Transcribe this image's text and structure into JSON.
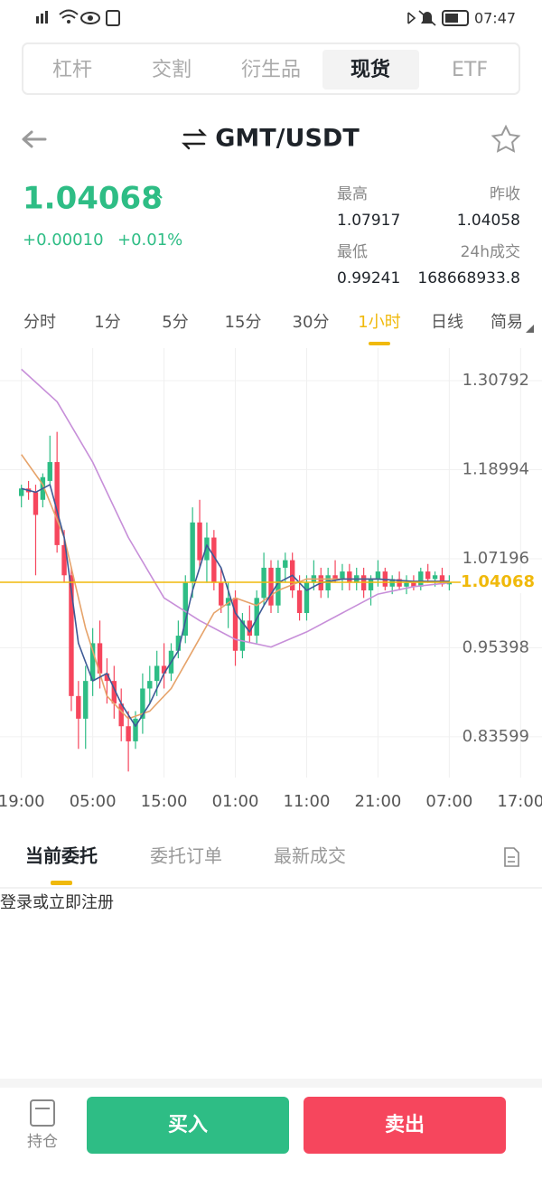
{
  "status_bar": {
    "time": "07:47"
  },
  "market_tabs": {
    "items": [
      "杠杆",
      "交割",
      "衍生品",
      "现货",
      "ETF"
    ],
    "active": "现货"
  },
  "pair": "GMT/USDT",
  "ticker": {
    "price": "1.04068",
    "change": "+0.00010",
    "change_percent": "+0.01%",
    "stats": [
      {
        "label": "最高",
        "value": "1.07917"
      },
      {
        "label": "昨收",
        "value": "1.04058"
      },
      {
        "label": "最低",
        "value": "0.99241"
      },
      {
        "label": "24h成交",
        "value": "168668933.8"
      }
    ]
  },
  "intervals": {
    "items": [
      "分时",
      "1分",
      "5分",
      "15分",
      "30分",
      "1小时",
      "日线",
      "简易"
    ],
    "active": "1小时"
  },
  "chart_data": {
    "type": "candlestick",
    "up_color": "#2ebd85",
    "down_color": "#f6465d",
    "grid": true,
    "xlim": [
      -3,
      73
    ],
    "xticks": [
      {
        "value": 0,
        "label": "19:00"
      },
      {
        "value": 10,
        "label": "05:00"
      },
      {
        "value": 20,
        "label": "15:00"
      },
      {
        "value": 30,
        "label": "01:00"
      },
      {
        "value": 40,
        "label": "11:00"
      },
      {
        "value": 50,
        "label": "21:00"
      },
      {
        "value": 60,
        "label": "07:00"
      },
      {
        "value": 70,
        "label": "17:00"
      }
    ],
    "ylim": [
      0.782,
      1.351
    ],
    "yticks": [
      1.30792,
      1.18994,
      1.07196,
      0.95398,
      0.83599
    ],
    "last_price": 1.04068,
    "last_price_color": "#f0b90b",
    "candles": {
      "x": [
        0,
        1,
        2,
        3,
        4,
        5,
        6,
        7,
        8,
        9,
        10,
        11,
        12,
        13,
        14,
        15,
        16,
        17,
        18,
        19,
        20,
        21,
        22,
        23,
        24,
        25,
        26,
        27,
        28,
        29,
        30,
        31,
        32,
        33,
        34,
        35,
        36,
        37,
        38,
        39,
        40,
        41,
        42,
        43,
        44,
        45,
        46,
        47,
        48,
        49,
        50,
        51,
        52,
        53,
        54,
        55,
        56,
        57,
        58,
        59,
        60
      ],
      "open": [
        1.155,
        1.165,
        1.16,
        1.15,
        1.175,
        1.2,
        1.09,
        1.05,
        0.89,
        0.86,
        0.91,
        0.96,
        0.92,
        0.91,
        0.88,
        0.85,
        0.83,
        0.86,
        0.9,
        0.91,
        0.93,
        0.92,
        0.95,
        0.97,
        1.04,
        1.12,
        1.07,
        1.1,
        1.04,
        1.01,
        1.02,
        0.95,
        0.99,
        0.97,
        1.02,
        1.06,
        1.01,
        1.06,
        1.07,
        1.03,
        1.0,
        1.04,
        1.05,
        1.03,
        1.05,
        1.045,
        1.055,
        1.04,
        1.05,
        1.03,
        1.045,
        1.055,
        1.035,
        1.045,
        1.035,
        1.04,
        1.035,
        1.055,
        1.045,
        1.05,
        1.038
      ],
      "high": [
        1.17,
        1.175,
        1.17,
        1.185,
        1.235,
        1.24,
        1.11,
        1.06,
        0.91,
        0.93,
        0.98,
        0.99,
        0.94,
        0.93,
        0.9,
        0.87,
        0.87,
        0.92,
        0.93,
        0.95,
        0.96,
        0.96,
        0.99,
        1.05,
        1.14,
        1.15,
        1.12,
        1.11,
        1.06,
        1.04,
        1.03,
        1.0,
        1.01,
        1.03,
        1.08,
        1.07,
        1.07,
        1.08,
        1.08,
        1.05,
        1.05,
        1.07,
        1.06,
        1.06,
        1.07,
        1.065,
        1.065,
        1.06,
        1.06,
        1.05,
        1.07,
        1.06,
        1.05,
        1.055,
        1.05,
        1.05,
        1.06,
        1.065,
        1.055,
        1.06,
        1.05
      ],
      "low": [
        1.14,
        1.15,
        1.05,
        1.14,
        1.17,
        1.08,
        1.04,
        0.87,
        0.82,
        0.82,
        0.89,
        0.9,
        0.88,
        0.86,
        0.83,
        0.79,
        0.82,
        0.84,
        0.88,
        0.89,
        0.9,
        0.91,
        0.94,
        0.96,
        1.02,
        1.06,
        1.04,
        1.03,
        1.0,
        0.98,
        0.93,
        0.94,
        0.96,
        0.96,
        1.01,
        1.0,
        1.0,
        1.04,
        1.02,
        0.99,
        0.99,
        1.03,
        1.02,
        1.02,
        1.04,
        1.03,
        1.03,
        1.03,
        1.02,
        1.01,
        1.035,
        1.03,
        1.025,
        1.03,
        1.025,
        1.03,
        1.03,
        1.04,
        1.035,
        1.035,
        1.03
      ],
      "close": [
        1.165,
        1.16,
        1.13,
        1.18,
        1.2,
        1.09,
        1.05,
        0.89,
        0.86,
        0.91,
        0.96,
        0.92,
        0.91,
        0.88,
        0.85,
        0.83,
        0.86,
        0.9,
        0.91,
        0.93,
        0.92,
        0.95,
        0.97,
        1.04,
        1.12,
        1.07,
        1.1,
        1.04,
        1.01,
        1.02,
        0.95,
        0.99,
        0.97,
        1.02,
        1.06,
        1.01,
        1.06,
        1.07,
        1.03,
        1.0,
        1.04,
        1.05,
        1.03,
        1.05,
        1.045,
        1.055,
        1.04,
        1.05,
        1.03,
        1.045,
        1.055,
        1.035,
        1.045,
        1.035,
        1.04,
        1.035,
        1.055,
        1.045,
        1.05,
        1.038,
        1.041
      ]
    },
    "series": [
      {
        "color": "#c78fd9",
        "x": [
          0,
          5,
          10,
          15,
          20,
          25,
          30,
          35,
          40,
          45,
          50,
          55,
          60
        ],
        "values": [
          1.323,
          1.28,
          1.2,
          1.1,
          1.02,
          0.99,
          0.965,
          0.955,
          0.975,
          1.0,
          1.025,
          1.035,
          1.04
        ]
      },
      {
        "color": "#e6a36a",
        "x": [
          0,
          3,
          6,
          9,
          12,
          15,
          18,
          21,
          24,
          27,
          30,
          33,
          36,
          40,
          45,
          50,
          55,
          60
        ],
        "values": [
          1.21,
          1.17,
          1.1,
          0.98,
          0.89,
          0.86,
          0.87,
          0.9,
          0.95,
          1.0,
          1.02,
          1.01,
          1.03,
          1.045,
          1.045,
          1.045,
          1.042,
          1.042
        ]
      },
      {
        "color": "#3d5a96",
        "x": [
          0,
          2,
          4,
          6,
          8,
          10,
          12,
          14,
          16,
          18,
          20,
          22,
          24,
          26,
          28,
          30,
          32,
          34,
          36,
          38,
          40,
          42,
          45,
          50,
          55,
          60
        ],
        "values": [
          1.165,
          1.16,
          1.17,
          1.1,
          0.96,
          0.91,
          0.92,
          0.88,
          0.85,
          0.88,
          0.92,
          0.95,
          1.03,
          1.09,
          1.06,
          1.0,
          0.975,
          1.01,
          1.04,
          1.05,
          1.03,
          1.04,
          1.045,
          1.045,
          1.042,
          1.042
        ]
      }
    ]
  },
  "order_tabs": {
    "items": [
      "当前委托",
      "委托订单",
      "最新成交"
    ],
    "active": "当前委托"
  },
  "login_prompt": "登录或立即注册",
  "bottom_bar": {
    "holdings": "持仓",
    "buy": "买入",
    "sell": "卖出"
  }
}
